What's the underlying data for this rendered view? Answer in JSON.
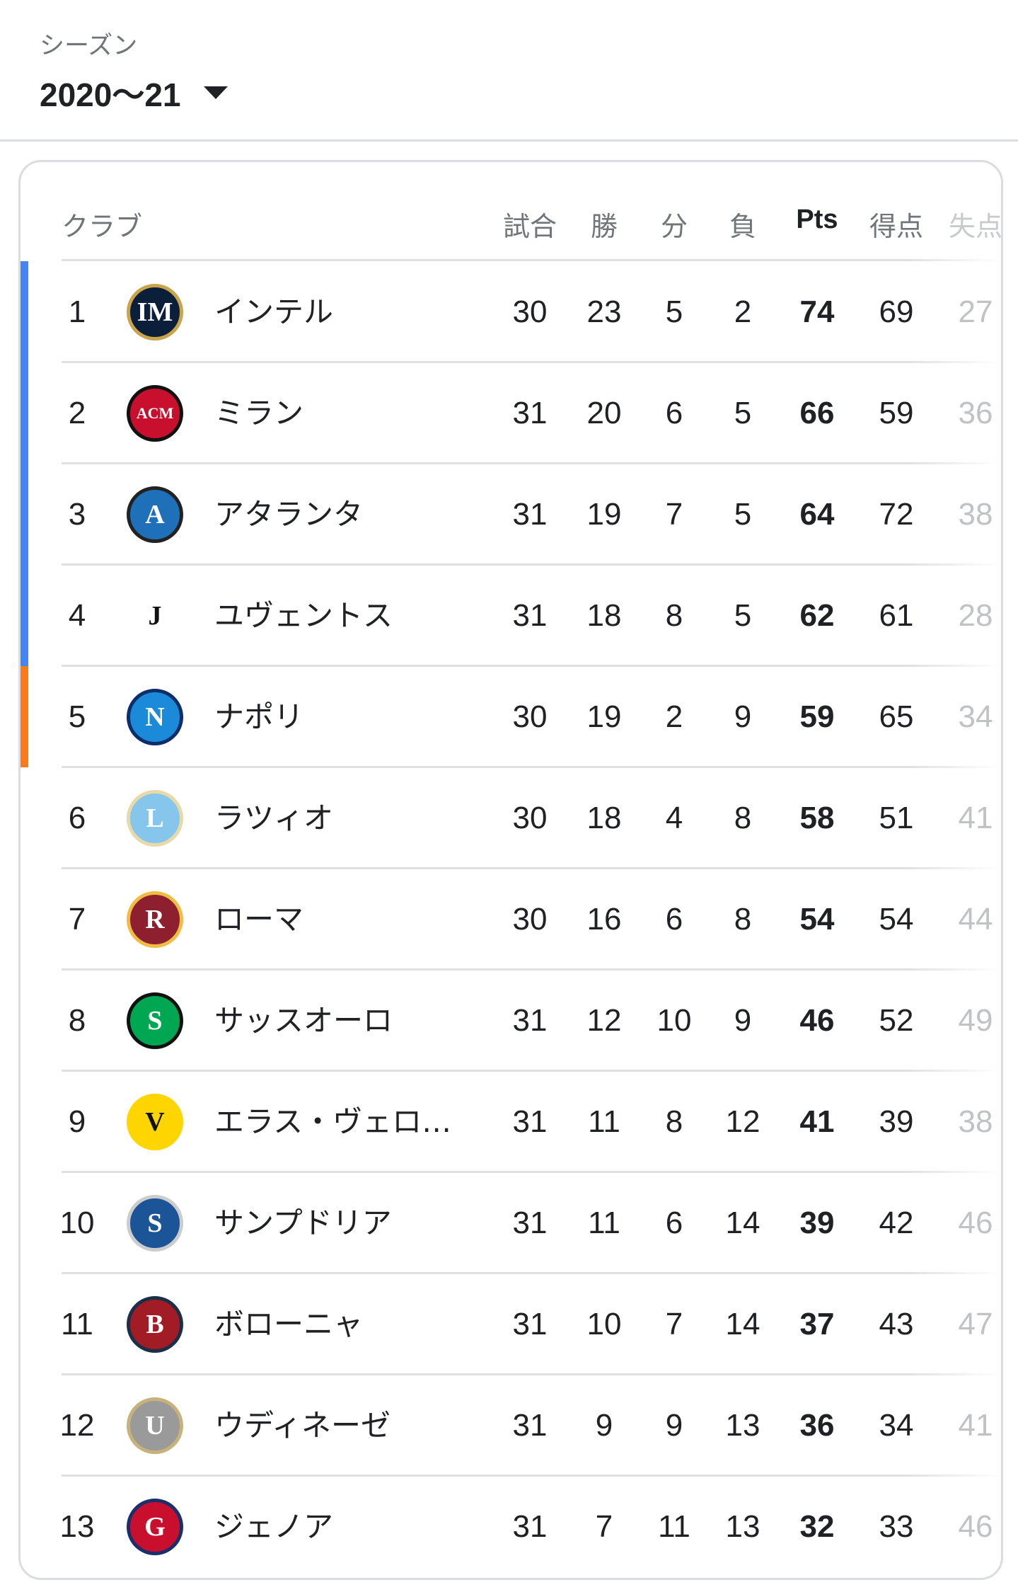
{
  "season": {
    "label": "シーズン",
    "value": "2020〜21"
  },
  "colors": {
    "champions_league": "#4285f4",
    "europa_league": "#fa7b17"
  },
  "table": {
    "headers": {
      "club": "クラブ",
      "played": "試合",
      "won": "勝",
      "drawn": "分",
      "lost": "負",
      "points": "Pts",
      "goals_for": "得点",
      "goals_against": "失点"
    },
    "rows": [
      {
        "rank": "1",
        "club": "インテル",
        "stats": [
          "30",
          "23",
          "5",
          "2",
          "74",
          "69",
          "27"
        ],
        "zone": "champions_league",
        "logo": {
          "color": "#0b1f3a",
          "ring": "#c9a44a",
          "text": "IM"
        }
      },
      {
        "rank": "2",
        "club": "ミラン",
        "stats": [
          "31",
          "20",
          "6",
          "5",
          "66",
          "59",
          "36"
        ],
        "zone": "champions_league",
        "logo": {
          "color": "#c8102e",
          "ring": "#111111",
          "text": "ACM"
        }
      },
      {
        "rank": "3",
        "club": "アタランタ",
        "stats": [
          "31",
          "19",
          "7",
          "5",
          "64",
          "72",
          "38"
        ],
        "zone": "champions_league",
        "logo": {
          "color": "#1e71b8",
          "ring": "#222222",
          "text": "A"
        }
      },
      {
        "rank": "4",
        "club": "ユヴェントス",
        "stats": [
          "31",
          "18",
          "8",
          "5",
          "62",
          "61",
          "28"
        ],
        "zone": "champions_league",
        "logo": {
          "color": "#ffffff",
          "ring": "#ffffff",
          "text": "J"
        }
      },
      {
        "rank": "5",
        "club": "ナポリ",
        "stats": [
          "30",
          "19",
          "2",
          "9",
          "59",
          "65",
          "34"
        ],
        "zone": "europa_league",
        "logo": {
          "color": "#1b8ad8",
          "ring": "#0d2d6b",
          "text": "N"
        }
      },
      {
        "rank": "6",
        "club": "ラツィオ",
        "stats": [
          "30",
          "18",
          "4",
          "8",
          "58",
          "51",
          "41"
        ],
        "zone": "",
        "logo": {
          "color": "#87c6ec",
          "ring": "#e8d9a8",
          "text": "L"
        }
      },
      {
        "rank": "7",
        "club": "ローマ",
        "stats": [
          "30",
          "16",
          "6",
          "8",
          "54",
          "54",
          "44"
        ],
        "zone": "",
        "logo": {
          "color": "#8e1f2f",
          "ring": "#f0bc42",
          "text": "R"
        }
      },
      {
        "rank": "8",
        "club": "サッスオーロ",
        "stats": [
          "31",
          "12",
          "10",
          "9",
          "46",
          "52",
          "49"
        ],
        "zone": "",
        "logo": {
          "color": "#00a752",
          "ring": "#111111",
          "text": "S"
        }
      },
      {
        "rank": "9",
        "club": "エラス・ヴェロ…",
        "stats": [
          "31",
          "11",
          "8",
          "12",
          "41",
          "39",
          "38"
        ],
        "zone": "",
        "logo": {
          "color": "#ffd500",
          "ring": "#ffd500",
          "text": "V"
        }
      },
      {
        "rank": "10",
        "club": "サンプドリア",
        "stats": [
          "31",
          "11",
          "6",
          "14",
          "39",
          "42",
          "46"
        ],
        "zone": "",
        "logo": {
          "color": "#1b5497",
          "ring": "#cccccc",
          "text": "S"
        }
      },
      {
        "rank": "11",
        "club": "ボローニャ",
        "stats": [
          "31",
          "10",
          "7",
          "14",
          "37",
          "43",
          "47"
        ],
        "zone": "",
        "logo": {
          "color": "#a21c26",
          "ring": "#1a2f48",
          "text": "B"
        }
      },
      {
        "rank": "12",
        "club": "ウディネーゼ",
        "stats": [
          "31",
          "9",
          "9",
          "13",
          "36",
          "34",
          "41"
        ],
        "zone": "",
        "logo": {
          "color": "#9a9a9a",
          "ring": "#c7b27a",
          "text": "U"
        }
      },
      {
        "rank": "13",
        "club": "ジェノア",
        "stats": [
          "31",
          "7",
          "11",
          "13",
          "32",
          "33",
          "46"
        ],
        "zone": "",
        "logo": {
          "color": "#c8102e",
          "ring": "#1a2f6b",
          "text": "G"
        }
      }
    ]
  }
}
